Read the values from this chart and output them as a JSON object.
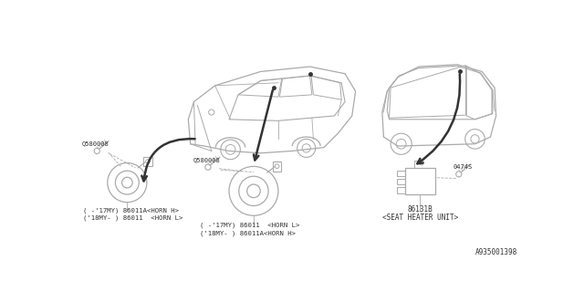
{
  "bg_color": "#ffffff",
  "line_color": "#aaaaaa",
  "dark_color": "#333333",
  "diagram_id": "A935001398",
  "screw_left_label": "Q580008",
  "screw_mid_label": "Q580008",
  "screw_right_label": "0474S",
  "horn_left_label1": "( -'17MY) 86011A<HORN H>",
  "horn_left_label2": "('18MY- ) 86011  <HORN L>",
  "horn_mid_label1": "( -'17MY) 86011  <HORN L>",
  "horn_mid_label2": "('18MY- ) 86011A<HORN H>",
  "seat_heater_num": "86131B",
  "seat_heater_name": "<SEAT HEATER UNIT>"
}
